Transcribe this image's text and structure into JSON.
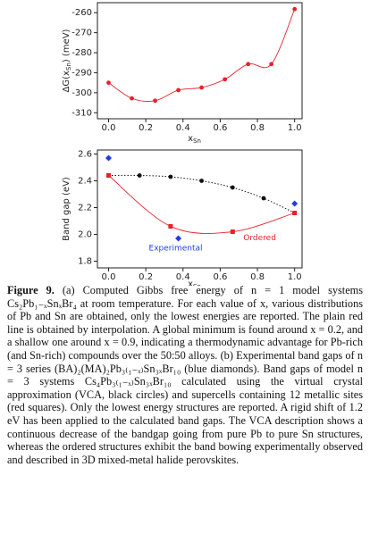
{
  "chart_data": [
    {
      "type": "line",
      "y_label": [
        "ΔG(x",
        "Sn",
        ") (meV)"
      ],
      "x_label": [
        "x",
        "Sn"
      ],
      "xlim": [
        -0.06,
        1.04
      ],
      "ylim": [
        -313,
        -255
      ],
      "xticks": [
        {
          "value": 0,
          "label": "0.0"
        },
        0.2,
        0.4,
        0.6,
        0.8,
        {
          "value": 1,
          "label": "1.0"
        }
      ],
      "yticks": [
        -310,
        -300,
        -290,
        -280,
        -270,
        -260
      ],
      "series": [
        {
          "color": "#e8202a",
          "marker": "circle",
          "line": "solid",
          "x": [
            0,
            0.125,
            0.25,
            0.375,
            0.5,
            0.625,
            0.75,
            0.875,
            1
          ],
          "values": [
            -295,
            -302.8,
            -304,
            -298.7,
            -297.4,
            -293.3,
            -285.7,
            -285.7,
            -258.2
          ]
        }
      ]
    },
    {
      "type": "scatter",
      "y_label": [
        "Band gap (eV)"
      ],
      "x_label": [
        "x",
        "Sn"
      ],
      "xlim": [
        -0.06,
        1.04
      ],
      "ylim": [
        1.75,
        2.63
      ],
      "xticks": [
        {
          "value": 0,
          "label": "0.0"
        },
        0.2,
        0.4,
        0.6,
        0.8,
        {
          "value": 1,
          "label": "1.0"
        }
      ],
      "yticks": [
        1.8,
        {
          "value": 2,
          "label": "2.0"
        },
        2.2,
        2.4,
        2.6
      ],
      "series": [
        {
          "name": "Experimental",
          "color": "#1f3ee0",
          "marker": "diamond",
          "x": [
            0,
            0.375,
            1
          ],
          "values": [
            2.57,
            1.97,
            2.23
          ]
        },
        {
          "color": "#111111",
          "marker": "circle",
          "line": "dotted",
          "x": [
            0,
            0.1667,
            0.3333,
            0.5,
            0.6667,
            0.8333,
            1
          ],
          "values": [
            2.44,
            2.44,
            2.43,
            2.4,
            2.35,
            2.27,
            2.16
          ]
        },
        {
          "name": "Ordered",
          "color": "#e8202a",
          "marker": "square",
          "line": "solid",
          "x": [
            0,
            0.3333,
            0.6667,
            1
          ],
          "values": [
            2.44,
            2.06,
            2.02,
            2.16
          ]
        }
      ]
    }
  ],
  "caption": {
    "label": "Figure 9.",
    "text": "(a) Computed Gibbs free energy of n = 1 model systems Cs₂Pb₁₋ₓSnₓBr₄ at room temperature. For each value of x, various distributions of Pb and Sn are obtained, only the lowest energies are reported. The plain red line is obtained by interpolation. A global minimum is found around x = 0.2, and a shallow one around x = 0.9, indicating a thermodynamic advantage for Pb-rich (and Sn-rich) compounds over the 50:50 alloys. (b) Experimental band gaps of n = 3 series (BA)₂(MA)₂Pb₃₍₁₋ₓ₎Sn₃ₓBr₁₀ (blue diamonds). Band gaps of model n = 3 systems Cs₄Pb₃₍₁₋ₓ₎Sn₃ₓBr₁₀ calculated using the virtual crystal approximation (VCA, black circles) and supercells containing 12 metallic sites (red squares). Only the lowest energy structures are reported. A rigid shift of 1.2 eV has been applied to the calculated band gaps. The VCA description shows a continuous decrease of the bandgap going from pure Pb to pure Sn structures, whereas the ordered structures exhibit the band bowing experimentally observed and described in 3D mixed-metal halide perovskites."
  }
}
